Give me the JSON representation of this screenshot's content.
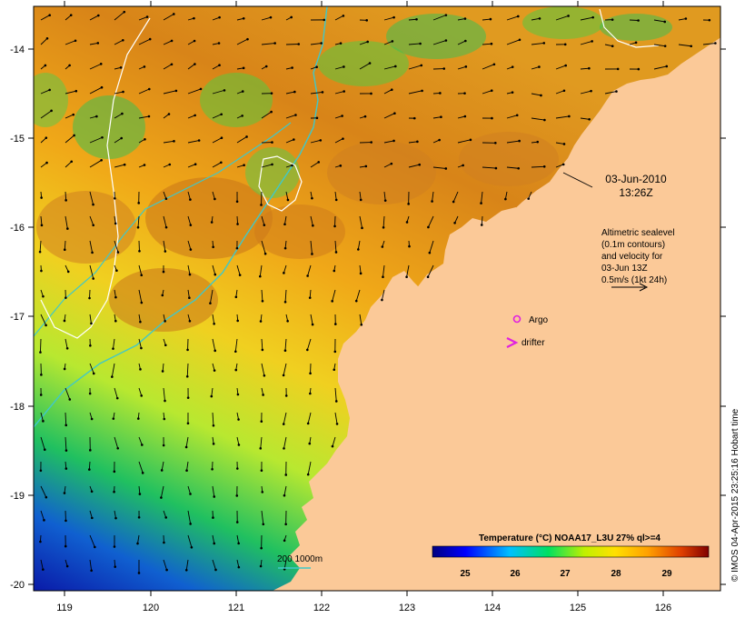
{
  "map": {
    "lon_ticks": [
      "119",
      "120",
      "121",
      "122",
      "123",
      "124",
      "125",
      "126"
    ],
    "lat_ticks": [
      "-14",
      "-15",
      "-16",
      "-17",
      "-18",
      "-19",
      "-20"
    ],
    "date_line1": "03-Jun-2010",
    "date_line2": "13:26Z",
    "altimetry_note": [
      "Altimetric sealevel",
      "(0.1m contours)",
      "and velocity for",
      "03-Jun 13Z",
      "0.5m/s (1kt 24h)"
    ],
    "argo_label": "Argo",
    "drifter_label": "drifter",
    "isobath_label": "200  1000m",
    "colorbar_title": "Temperature (°C) NOAA17_L3U 27% ql>=4",
    "colorbar_ticks": [
      "25",
      "26",
      "27",
      "28",
      "29"
    ],
    "credit": "© IMOS 04-Apr-2015 23:25:16 Hobart time",
    "colors": {
      "land": "#fbc998",
      "argo": "#e020e0",
      "drifter": "#e020e0",
      "isobath": "#40c8c8",
      "sealevel_contour": "#ffffff"
    }
  }
}
